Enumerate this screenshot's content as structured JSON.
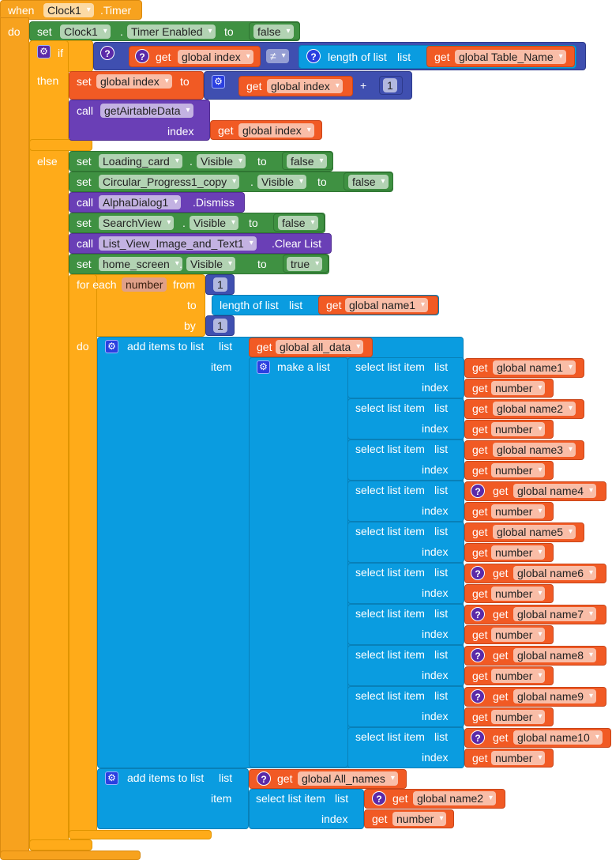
{
  "event": {
    "when": "when",
    "component": "Clock1",
    "event_name": ".Timer",
    "do": "do"
  },
  "set_timer": {
    "set": "set",
    "component": "Clock1",
    "dot": ".",
    "property": "Timer Enabled",
    "to": "to",
    "value": "false"
  },
  "if_block": {
    "if": "if",
    "then": "then",
    "else": "else",
    "condition": {
      "get": "get",
      "var": "global index",
      "op": "≠",
      "length_of_list": "length of list",
      "list": "list",
      "get2": "get",
      "var2": "global Table_Name"
    },
    "set_index": {
      "set": "set",
      "var": "global index",
      "to": "to",
      "get": "get",
      "get_var": "global index",
      "plus": "+",
      "number": "1"
    },
    "call": {
      "call": "call",
      "procedure": "getAirtableData",
      "index_label": "index",
      "get": "get",
      "var": "global index"
    }
  },
  "else_rows": {
    "r1": {
      "kw": "set",
      "component": "Loading_card",
      "dot": ".",
      "property": "Visible",
      "to": "to",
      "value": "false"
    },
    "r2": {
      "kw": "set",
      "component": "Circular_Progress1_copy",
      "dot": ".",
      "property": "Visible",
      "to": "to",
      "value": "false"
    },
    "r3": {
      "kw": "call",
      "component": "AlphaDialog1",
      "method": ".Dismiss"
    },
    "r4": {
      "kw": "set",
      "component": "SearchView",
      "dot": ".",
      "property": "Visible",
      "to": "to",
      "value": "false"
    },
    "r5": {
      "kw": "call",
      "component": "List_View_Image_and_Text1",
      "method": ".Clear List"
    },
    "r6": {
      "kw": "set",
      "component": "home_screen",
      "dot": ".",
      "property": "Visible",
      "to": "to",
      "value": "true"
    }
  },
  "for_each": {
    "for_each": "for each",
    "var": "number",
    "from": "from",
    "from_value": "1",
    "to": "to",
    "length_of_list": "length of list",
    "list": "list",
    "get": "get",
    "list_var": "global name1",
    "by": "by",
    "by_value": "1",
    "do": "do"
  },
  "add_items_1": {
    "label": "add items to list",
    "list": "list",
    "get": "get",
    "list_var": "global all_data",
    "item": "item",
    "make_a_list": "make a list",
    "select_label": "select list item",
    "select_list": "list",
    "index_label": "index",
    "index_var": "number",
    "selects": [
      {
        "var": "global name1",
        "warn": false
      },
      {
        "var": "global name2",
        "warn": false
      },
      {
        "var": "global name3",
        "warn": false
      },
      {
        "var": "global name4",
        "warn": true
      },
      {
        "var": "global name5",
        "warn": false
      },
      {
        "var": "global name6",
        "warn": true
      },
      {
        "var": "global name7",
        "warn": true
      },
      {
        "var": "global name8",
        "warn": true
      },
      {
        "var": "global name9",
        "warn": true
      },
      {
        "var": "global name10",
        "warn": true
      }
    ]
  },
  "add_items_2": {
    "label": "add items to list",
    "list": "list",
    "get": "get",
    "list_var": "global All_names",
    "item": "item",
    "select_label": "select list item",
    "select_list": "list",
    "get2": "get",
    "select_var": "global name2",
    "index_label": "index",
    "get3": "get",
    "index_var": "number"
  },
  "icons": {
    "warning": "?",
    "mutator": "⚙"
  }
}
